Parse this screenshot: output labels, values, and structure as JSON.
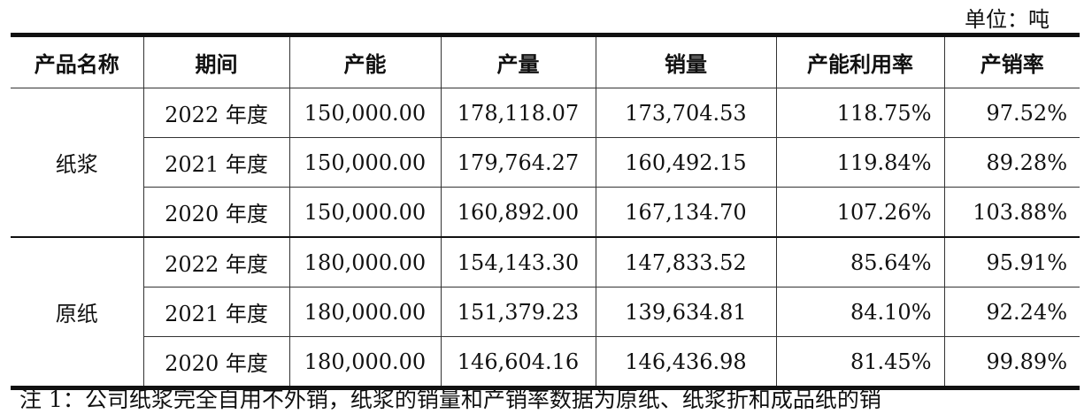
{
  "unit": "单位：吨",
  "headers": [
    "产品名称",
    "期间",
    "产能",
    "产量",
    "销量",
    "产能利用率",
    "产销率"
  ],
  "groups": [
    {
      "name": "纸浆",
      "rows": [
        [
          "2022 年度",
          "150,000.00",
          "178,118.07",
          "173,704.53",
          "118.75%",
          "97.52%"
        ],
        [
          "2021 年度",
          "150,000.00",
          "179,764.27",
          "160,492.15",
          "119.84%",
          "89.28%"
        ],
        [
          "2020 年度",
          "150,000.00",
          "160,892.00",
          "167,134.70",
          "107.26%",
          "103.88%"
        ]
      ]
    },
    {
      "name": "原纸",
      "rows": [
        [
          "2022 年度",
          "180,000.00",
          "154,143.30",
          "147,833.52",
          "85.64%",
          "95.91%"
        ],
        [
          "2021 年度",
          "180,000.00",
          "151,379.23",
          "139,634.81",
          "84.10%",
          "92.24%"
        ],
        [
          "2020 年度",
          "180,000.00",
          "146,604.16",
          "146,436.98",
          "81.45%",
          "99.89%"
        ]
      ]
    }
  ],
  "note": "注 1：公司纸浆完全自用不外销，纸浆的销量和产销率数据为原纸、纸浆折和成品纸的销"
}
